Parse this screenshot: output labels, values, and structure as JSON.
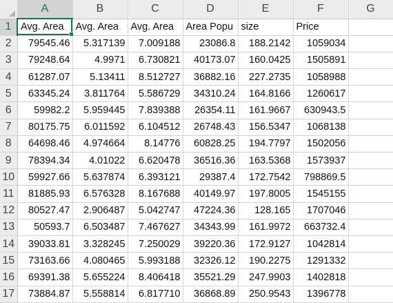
{
  "columns": [
    "A",
    "B",
    "C",
    "D",
    "E",
    "F",
    "G"
  ],
  "rows": [
    {
      "num": "1",
      "cells": [
        "Avg. Area",
        "Avg. Area",
        "Avg. Area",
        "Area Popu",
        "size",
        "Price",
        ""
      ]
    },
    {
      "num": "2",
      "cells": [
        "79545.46",
        "5.317139",
        "7.009188",
        "23086.8",
        "188.2142",
        "1059034",
        ""
      ]
    },
    {
      "num": "3",
      "cells": [
        "79248.64",
        "4.9971",
        "6.730821",
        "40173.07",
        "160.0425",
        "1505891",
        ""
      ]
    },
    {
      "num": "4",
      "cells": [
        "61287.07",
        "5.13411",
        "8.512727",
        "36882.16",
        "227.2735",
        "1058988",
        ""
      ]
    },
    {
      "num": "5",
      "cells": [
        "63345.24",
        "3.811764",
        "5.586729",
        "34310.24",
        "164.8166",
        "1260617",
        ""
      ]
    },
    {
      "num": "6",
      "cells": [
        "59982.2",
        "5.959445",
        "7.839388",
        "26354.11",
        "161.9667",
        "630943.5",
        ""
      ]
    },
    {
      "num": "7",
      "cells": [
        "80175.75",
        "6.011592",
        "6.104512",
        "26748.43",
        "156.5347",
        "1068138",
        ""
      ]
    },
    {
      "num": "8",
      "cells": [
        "64698.46",
        "4.974664",
        "8.14776",
        "60828.25",
        "194.7797",
        "1502056",
        ""
      ]
    },
    {
      "num": "9",
      "cells": [
        "78394.34",
        "4.01022",
        "6.620478",
        "36516.36",
        "163.5368",
        "1573937",
        ""
      ]
    },
    {
      "num": "10",
      "cells": [
        "59927.66",
        "5.637874",
        "6.393121",
        "29387.4",
        "172.7542",
        "798869.5",
        ""
      ]
    },
    {
      "num": "11",
      "cells": [
        "81885.93",
        "6.576328",
        "8.167688",
        "40149.97",
        "197.8005",
        "1545155",
        ""
      ]
    },
    {
      "num": "12",
      "cells": [
        "80527.47",
        "2.906487",
        "5.042747",
        "47224.36",
        "128.165",
        "1707046",
        ""
      ]
    },
    {
      "num": "13",
      "cells": [
        "50593.7",
        "6.503487",
        "7.467627",
        "34343.99",
        "161.9972",
        "663732.4",
        ""
      ]
    },
    {
      "num": "14",
      "cells": [
        "39033.81",
        "3.328245",
        "7.250029",
        "39220.36",
        "172.9127",
        "1042814",
        ""
      ]
    },
    {
      "num": "15",
      "cells": [
        "73163.66",
        "4.080465",
        "5.993188",
        "32326.12",
        "190.2275",
        "1291332",
        ""
      ]
    },
    {
      "num": "16",
      "cells": [
        "69391.38",
        "5.655224",
        "8.406418",
        "35521.29",
        "247.9903",
        "1402818",
        ""
      ]
    },
    {
      "num": "17",
      "cells": [
        "73884.87",
        "5.558814",
        "6.817710",
        "36868.89",
        "250.9543",
        "1396778",
        ""
      ]
    }
  ],
  "active_cell": "A1",
  "colors": {
    "accent": "#217346",
    "header_bg": "#ececec",
    "selected_header_bg": "#d3d3d3",
    "gridline": "#d4d4d4"
  }
}
